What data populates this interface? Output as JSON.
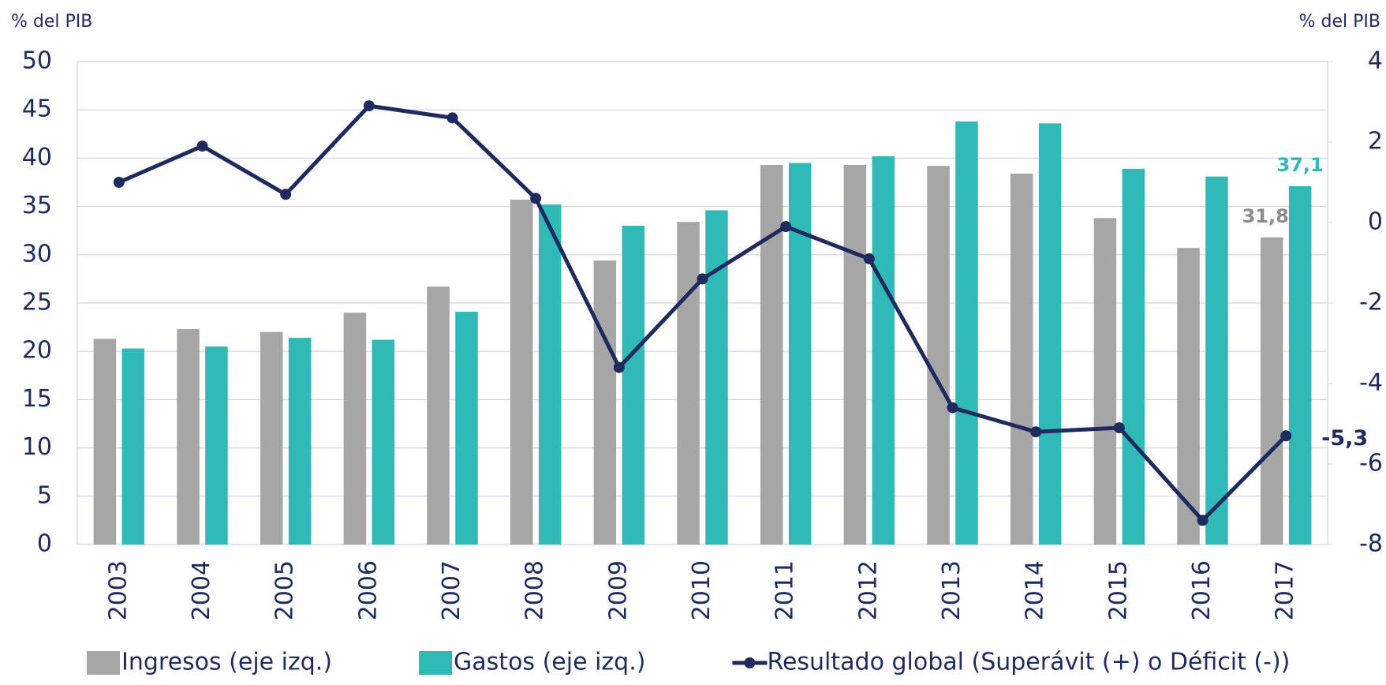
{
  "chart_data": {
    "type": "bar",
    "y_label": "% del PIB",
    "y2_label": "% del PIB",
    "categories": [
      "2003",
      "2004",
      "2005",
      "2006",
      "2007",
      "2008",
      "2009",
      "2010",
      "2011",
      "2012",
      "2013",
      "2014",
      "2015",
      "2016",
      "2017"
    ],
    "series": [
      {
        "name": "Ingresos (eje izq.)",
        "color": "#a6a6a6",
        "label_color": "#8c8c8c",
        "values": [
          21.3,
          22.3,
          22.0,
          24.0,
          26.7,
          35.7,
          29.4,
          33.4,
          39.3,
          39.3,
          39.2,
          38.4,
          33.8,
          30.7,
          31.8
        ],
        "value_labels": [
          null,
          null,
          null,
          null,
          null,
          null,
          null,
          null,
          null,
          null,
          null,
          null,
          null,
          null,
          "31,8"
        ]
      },
      {
        "name": "Gastos (eje izq.)",
        "color": "#2fbab8",
        "label_color": "#2fbab8",
        "values": [
          20.3,
          20.5,
          21.4,
          21.2,
          24.1,
          35.2,
          33.0,
          34.6,
          39.5,
          40.2,
          43.8,
          43.6,
          38.9,
          38.1,
          37.1
        ],
        "value_labels": [
          null,
          null,
          null,
          null,
          null,
          null,
          null,
          null,
          null,
          null,
          null,
          null,
          null,
          null,
          "37,1"
        ]
      },
      {
        "name": "Resultado global (Superávit (+) o Déficit (-))",
        "type": "line",
        "axis": "y2",
        "color": "#1f2a5e",
        "label_color": "#1f2a5e",
        "values": [
          1.0,
          1.9,
          0.7,
          2.9,
          2.6,
          0.6,
          -3.6,
          -1.4,
          -0.1,
          -0.9,
          -4.6,
          -5.2,
          -5.1,
          -7.4,
          -5.3
        ],
        "value_labels": [
          null,
          null,
          null,
          null,
          null,
          null,
          null,
          null,
          null,
          null,
          null,
          null,
          null,
          null,
          "-5,3"
        ]
      }
    ],
    "ylim": [
      0,
      50
    ],
    "yticks": [
      0,
      5,
      10,
      15,
      20,
      25,
      30,
      35,
      40,
      45,
      50
    ],
    "y2lim": [
      -8,
      4
    ],
    "y2ticks": [
      -8,
      -6,
      -4,
      -2,
      0,
      2,
      4
    ],
    "grid": true,
    "legend": "bottom"
  }
}
